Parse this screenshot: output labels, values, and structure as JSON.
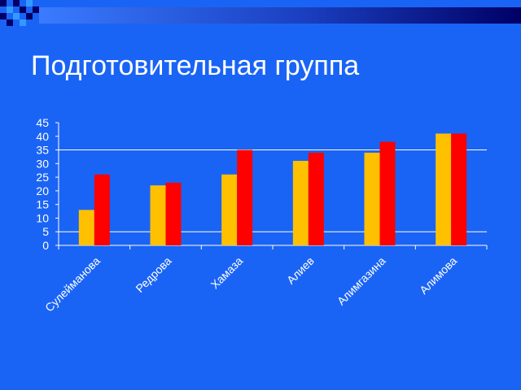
{
  "slide": {
    "title": "Подготовительная группа"
  },
  "colors": {
    "background": "#1a64f5",
    "series_1": "#ffc000",
    "series_2": "#ff0000",
    "band_dark": "#000066",
    "band_light": "#3399ff"
  },
  "chart_data": {
    "type": "bar",
    "title": "",
    "xlabel": "",
    "ylabel": "",
    "categories": [
      "Сулейманова",
      "Редрова",
      "Хамаза",
      "Алиев",
      "Алимгазина",
      "Алимова"
    ],
    "series": [
      {
        "values": [
          13,
          22,
          26,
          31,
          34,
          41
        ]
      },
      {
        "values": [
          26,
          23,
          35,
          34,
          38,
          41
        ]
      }
    ],
    "ylim": [
      0,
      45
    ],
    "yticks": [
      0,
      5,
      10,
      15,
      20,
      25,
      30,
      35,
      40,
      45
    ],
    "gridlines": [
      0,
      5,
      35
    ],
    "legend": "none"
  }
}
